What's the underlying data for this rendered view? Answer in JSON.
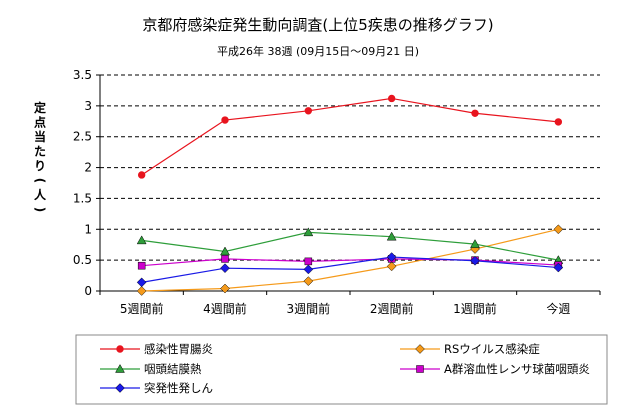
{
  "chart_data": {
    "type": "line",
    "title": "京都府感染症発生動向調査(上位5疾患の推移グラフ)",
    "subtitle": "平成26年 38週 (09月15日～09月21 日)",
    "ylabel": "定点当たり(人)",
    "ylabel_chars": [
      "定",
      "点",
      "当",
      "た",
      "り",
      "(",
      "人",
      ")"
    ],
    "categories": [
      "5週間前",
      "4週間前",
      "3週間前",
      "2週間前",
      "1週間前",
      "今週"
    ],
    "ylim": [
      0,
      3.5
    ],
    "yticks": [
      "0",
      "0.5",
      "1",
      "1.5",
      "2",
      "2.5",
      "3",
      "3.5"
    ],
    "grid": true,
    "legend_position": "bottom",
    "series": [
      {
        "name": "感染性胃腸炎",
        "color": "#e8141e",
        "marker": "circle",
        "values": [
          1.88,
          2.77,
          2.92,
          3.12,
          2.88,
          2.74
        ]
      },
      {
        "name": "RSウイルス感染症",
        "color": "#f59a1a",
        "marker": "diamond",
        "values": [
          0.0,
          0.04,
          0.16,
          0.4,
          0.68,
          1.0
        ]
      },
      {
        "name": "咽頭結膜熱",
        "color": "#2e9e3a",
        "marker": "triangle",
        "values": [
          0.82,
          0.64,
          0.95,
          0.88,
          0.76,
          0.5
        ]
      },
      {
        "name": "A群溶血性レンサ球菌咽頭炎",
        "color": "#cc00cc",
        "marker": "square",
        "values": [
          0.41,
          0.52,
          0.48,
          0.52,
          0.5,
          0.42
        ]
      },
      {
        "name": "突発性発しん",
        "color": "#1a1ae6",
        "marker": "diamond",
        "values": [
          0.14,
          0.37,
          0.35,
          0.55,
          0.49,
          0.38
        ]
      }
    ]
  }
}
